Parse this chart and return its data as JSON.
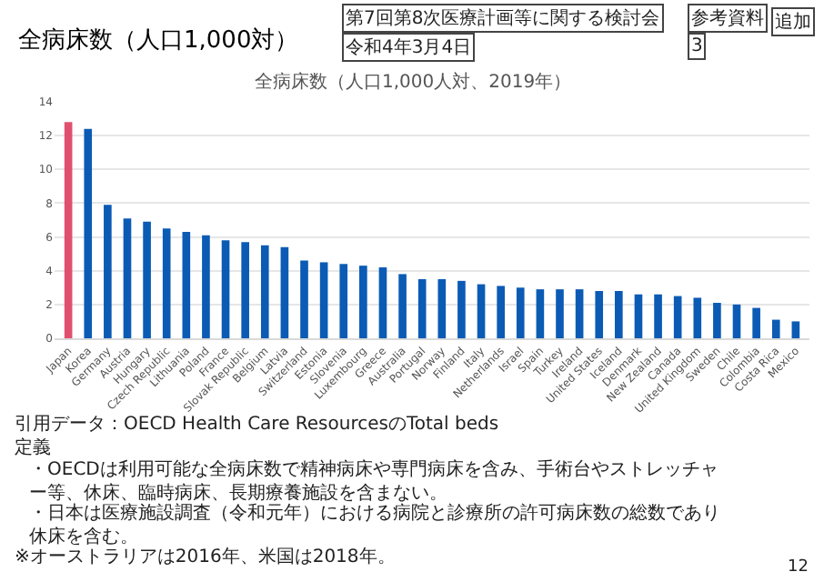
{
  "chart_data": {
    "type": "bar",
    "title": "全病床数（人口1,000対）",
    "subtitle": "全病床数（人口1,000人対、2019年）",
    "categories": [
      "Japan",
      "Korea",
      "Germany",
      "Austria",
      "Hungary",
      "Czech Republic",
      "Lithuania",
      "Poland",
      "France",
      "Slovak Republic",
      "Belgium",
      "Latvia",
      "Switzerland",
      "Estonia",
      "Slovenia",
      "Luxembourg",
      "Greece",
      "Australia",
      "Portugal",
      "Norway",
      "Finland",
      "Italy",
      "Netherlands",
      "Israel",
      "Spain",
      "Turkey",
      "Ireland",
      "United States",
      "Iceland",
      "Denmark",
      "New Zealand",
      "Canada",
      "United Kingdom",
      "Sweden",
      "Chile",
      "Colombia",
      "Costa Rica",
      "Mexico"
    ],
    "values": [
      12.8,
      12.4,
      7.9,
      7.1,
      6.9,
      6.5,
      6.3,
      6.1,
      5.8,
      5.7,
      5.5,
      5.4,
      4.6,
      4.5,
      4.4,
      4.3,
      4.2,
      3.8,
      3.5,
      3.5,
      3.4,
      3.2,
      3.1,
      3.0,
      2.9,
      2.9,
      2.9,
      2.8,
      2.8,
      2.6,
      2.6,
      2.5,
      2.4,
      2.1,
      2.0,
      1.8,
      1.1,
      1.0
    ],
    "colors": [
      "#e0506e",
      "#0b5bb5",
      "#0b5bb5",
      "#0b5bb5",
      "#0b5bb5",
      "#0b5bb5",
      "#0b5bb5",
      "#0b5bb5",
      "#0b5bb5",
      "#0b5bb5",
      "#0b5bb5",
      "#0b5bb5",
      "#0b5bb5",
      "#0b5bb5",
      "#0b5bb5",
      "#0b5bb5",
      "#0b5bb5",
      "#0b5bb5",
      "#0b5bb5",
      "#0b5bb5",
      "#0b5bb5",
      "#0b5bb5",
      "#0b5bb5",
      "#0b5bb5",
      "#0b5bb5",
      "#0b5bb5",
      "#0b5bb5",
      "#0b5bb5",
      "#0b5bb5",
      "#0b5bb5",
      "#0b5bb5",
      "#0b5bb5",
      "#0b5bb5",
      "#0b5bb5",
      "#0b5bb5",
      "#0b5bb5",
      "#0b5bb5",
      "#0b5bb5"
    ],
    "ylim": [
      0,
      14
    ],
    "yticks": [
      0,
      2,
      4,
      6,
      8,
      10,
      12,
      14
    ],
    "grid": "y",
    "annotations": [
      "第7回第8次医療計画等に関する検討会",
      "令和4年3月4日",
      "参考資料",
      "3",
      "追加",
      "引用データ：OECD Health Care ResourcesのTotal beds",
      "定義",
      "・OECDは利用可能な全病床数で精神病床や専門病床を含み、手術台やストレッチャー等、休床、臨時病床、長期療養施設を含まない。",
      "・日本は医療施設調査（令和元年）における病院と診療所の許可病床数の総数であり休床を含む。",
      "※オーストラリアは2016年、米国は2018年。",
      "12"
    ]
  }
}
